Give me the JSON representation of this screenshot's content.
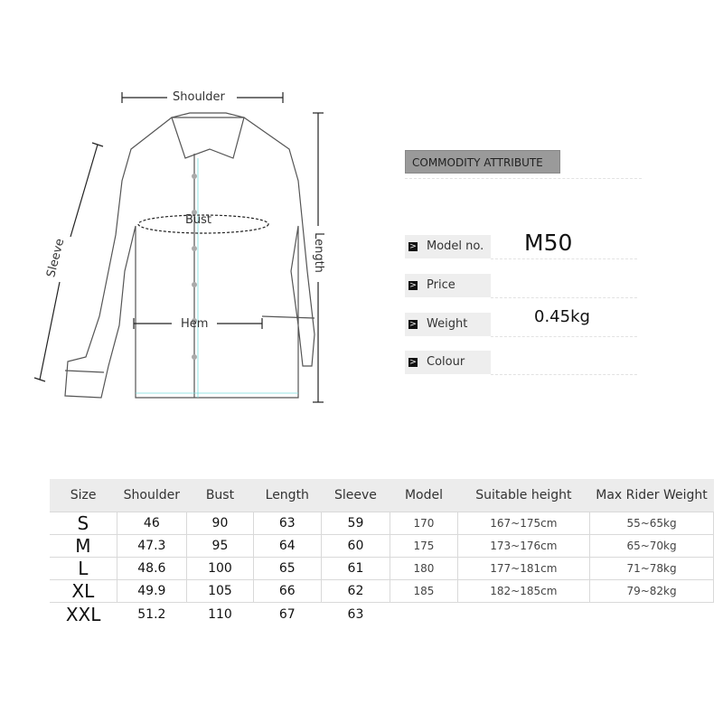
{
  "diagram": {
    "shoulder": "Shoulder",
    "bust": "Bust",
    "hem": "Hem",
    "sleeve": "Sleeve",
    "length": "Length"
  },
  "attributes": {
    "title": "COMMODITY ATTRIBUTE",
    "rows": [
      {
        "label": "Model no.",
        "value": "M50"
      },
      {
        "label": "Price",
        "value": ""
      },
      {
        "label": "Weight",
        "value": "0.45kg"
      },
      {
        "label": "Colour",
        "value": ""
      }
    ]
  },
  "size_table": {
    "headers": [
      "Size",
      "Shoulder",
      "Bust",
      "Length",
      "Sleeve",
      "Model",
      "Suitable height",
      "Max Rider Weight"
    ],
    "rows": [
      [
        "S",
        "46",
        "90",
        "63",
        "59",
        "170",
        "167~175cm",
        "55~65kg"
      ],
      [
        "M",
        "47.3",
        "95",
        "64",
        "60",
        "175",
        "173~176cm",
        "65~70kg"
      ],
      [
        "L",
        "48.6",
        "100",
        "65",
        "61",
        "180",
        "177~181cm",
        "71~78kg"
      ],
      [
        "XL",
        "49.9",
        "105",
        "66",
        "62",
        "185",
        "182~185cm",
        "79~82kg"
      ],
      [
        "XXL",
        "51.2",
        "110",
        "67",
        "63",
        "",
        "",
        ""
      ]
    ]
  }
}
